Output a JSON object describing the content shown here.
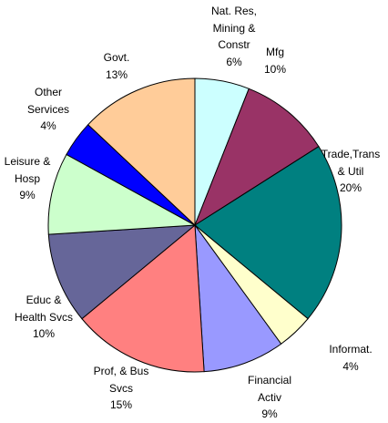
{
  "chart_data": {
    "type": "pie",
    "categories": [
      "Nat. Res,\nMining &\nConstr",
      "Mfg",
      "Trade,Trans\n& Util",
      "Informat.",
      "Financial\nActiv",
      "Prof, & Bus\nSvcs",
      "Educ &\nHealth Svcs",
      "Leisure &\nHosp",
      "Other\nServices",
      "Govt."
    ],
    "values": [
      6,
      10,
      20,
      4,
      9,
      15,
      10,
      9,
      4,
      13
    ],
    "value_labels": [
      "6%",
      "10%",
      "20%",
      "4%",
      "9%",
      "15%",
      "10%",
      "9%",
      "4%",
      "13%"
    ],
    "colors": [
      "#ccffff",
      "#993366",
      "#008080",
      "#ffffcc",
      "#9999ff",
      "#ff8080",
      "#666699",
      "#ccffcc",
      "#0000ff",
      "#ffcc99"
    ]
  }
}
